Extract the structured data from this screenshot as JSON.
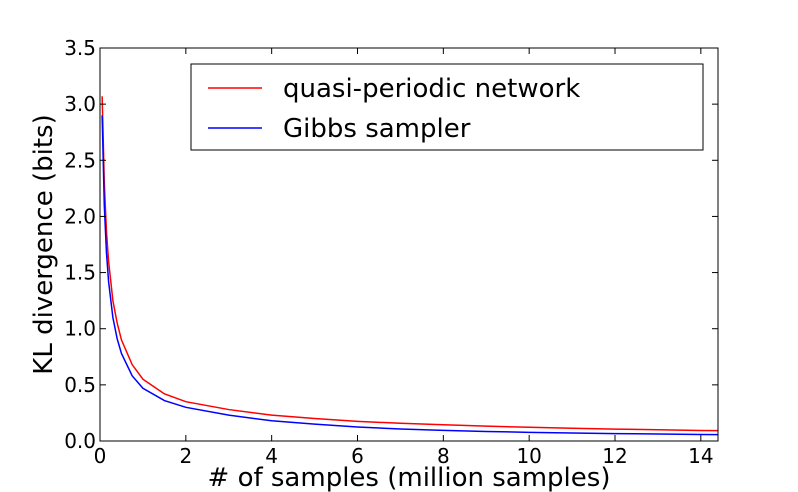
{
  "chart_data": {
    "type": "line",
    "xlabel": "# of samples (million samples)",
    "ylabel": "KL divergence (bits)",
    "xlim": [
      0,
      14.4
    ],
    "ylim": [
      0,
      3.5
    ],
    "xticks": [
      0,
      2,
      4,
      6,
      8,
      10,
      12,
      14
    ],
    "yticks": [
      0.0,
      0.5,
      1.0,
      1.5,
      2.0,
      2.5,
      3.0,
      3.5
    ],
    "xtick_labels": [
      "0",
      "2",
      "4",
      "6",
      "8",
      "10",
      "12",
      "14"
    ],
    "ytick_labels": [
      "0.0",
      "0.5",
      "1.0",
      "1.5",
      "2.0",
      "2.5",
      "3.0",
      "3.5"
    ],
    "grid": false,
    "legend": "top-right",
    "series": [
      {
        "name": "quasi-periodic network",
        "color": "#ff0000",
        "x": [
          0.05,
          0.1,
          0.15,
          0.2,
          0.3,
          0.4,
          0.5,
          0.75,
          1.0,
          1.5,
          2.0,
          3.0,
          4.0,
          5.0,
          6.0,
          7.0,
          8.0,
          9.0,
          10.0,
          11.0,
          12.0,
          13.0,
          14.0,
          14.4
        ],
        "y": [
          3.07,
          2.3,
          1.87,
          1.6,
          1.25,
          1.05,
          0.9,
          0.68,
          0.55,
          0.42,
          0.35,
          0.28,
          0.23,
          0.2,
          0.175,
          0.158,
          0.145,
          0.133,
          0.122,
          0.113,
          0.106,
          0.1,
          0.094,
          0.092
        ]
      },
      {
        "name": "Gibbs sampler",
        "color": "#0000ff",
        "x": [
          0.05,
          0.1,
          0.15,
          0.2,
          0.3,
          0.4,
          0.5,
          0.75,
          1.0,
          1.5,
          2.0,
          3.0,
          4.0,
          5.0,
          6.0,
          7.0,
          8.0,
          9.0,
          10.0,
          11.0,
          12.0,
          13.0,
          14.0,
          14.4
        ],
        "y": [
          2.9,
          2.1,
          1.68,
          1.42,
          1.1,
          0.91,
          0.78,
          0.58,
          0.47,
          0.36,
          0.3,
          0.23,
          0.18,
          0.15,
          0.125,
          0.107,
          0.095,
          0.085,
          0.077,
          0.071,
          0.066,
          0.062,
          0.058,
          0.057
        ]
      }
    ]
  }
}
